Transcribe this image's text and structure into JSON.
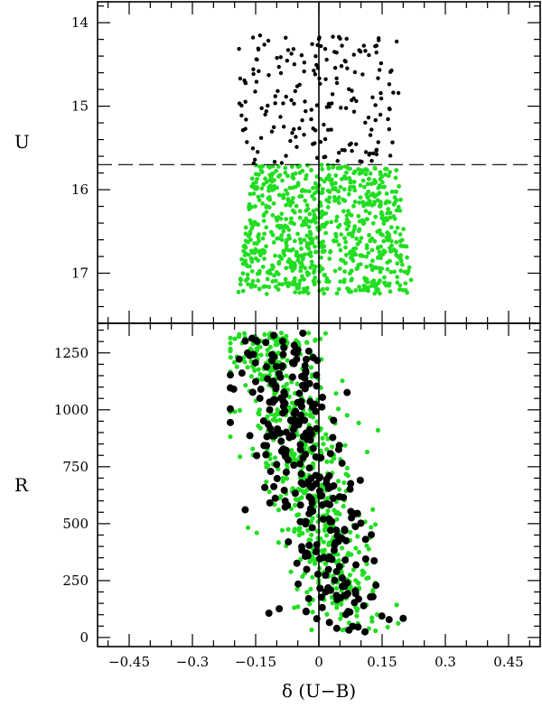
{
  "chart_data": [
    {
      "type": "scatter",
      "panel": "top",
      "xlim": [
        -0.525,
        0.525
      ],
      "ylim": [
        17.6,
        13.75
      ],
      "y_inverted": true,
      "ylabel": "U",
      "y_ticks": [
        "14",
        "15",
        "16",
        "17"
      ],
      "y_tick_values": [
        14,
        15,
        16,
        17
      ],
      "reference_lines": [
        {
          "orientation": "vertical",
          "value": 0,
          "style": "solid"
        },
        {
          "orientation": "horizontal",
          "value": 15.7,
          "style": "dashed"
        }
      ],
      "series": [
        {
          "color": "#000000",
          "marker_size": "small",
          "y_range": [
            14.15,
            15.7
          ],
          "x_range": [
            -0.2,
            0.2
          ],
          "count": 190
        },
        {
          "color": "#22dd22",
          "marker_size": "small",
          "y_range": [
            15.7,
            17.25
          ],
          "x_range": [
            -0.21,
            0.21
          ],
          "count": 820
        }
      ],
      "grid": false
    },
    {
      "type": "scatter",
      "panel": "bottom",
      "xlim": [
        -0.525,
        0.525
      ],
      "ylim": [
        -40,
        1380
      ],
      "ylabel": "R",
      "xlabel": "δ (U−B)",
      "x_ticks": [
        "−0.45",
        "−0.3",
        "−0.15",
        "0",
        "0.15",
        "0.3",
        "0.45"
      ],
      "x_tick_values": [
        -0.45,
        -0.3,
        -0.15,
        0,
        0.15,
        0.3,
        0.45
      ],
      "y_ticks": [
        "0",
        "250",
        "500",
        "750",
        "1000",
        "1250"
      ],
      "y_tick_values": [
        0,
        250,
        500,
        750,
        1000,
        1250
      ],
      "reference_lines": [
        {
          "orientation": "vertical",
          "value": 0,
          "style": "solid"
        }
      ],
      "series": [
        {
          "color": "#22dd22",
          "marker_size": "small",
          "count": 620
        },
        {
          "color": "#000000",
          "marker_size": "large",
          "count": 300
        }
      ],
      "grid": false
    }
  ]
}
